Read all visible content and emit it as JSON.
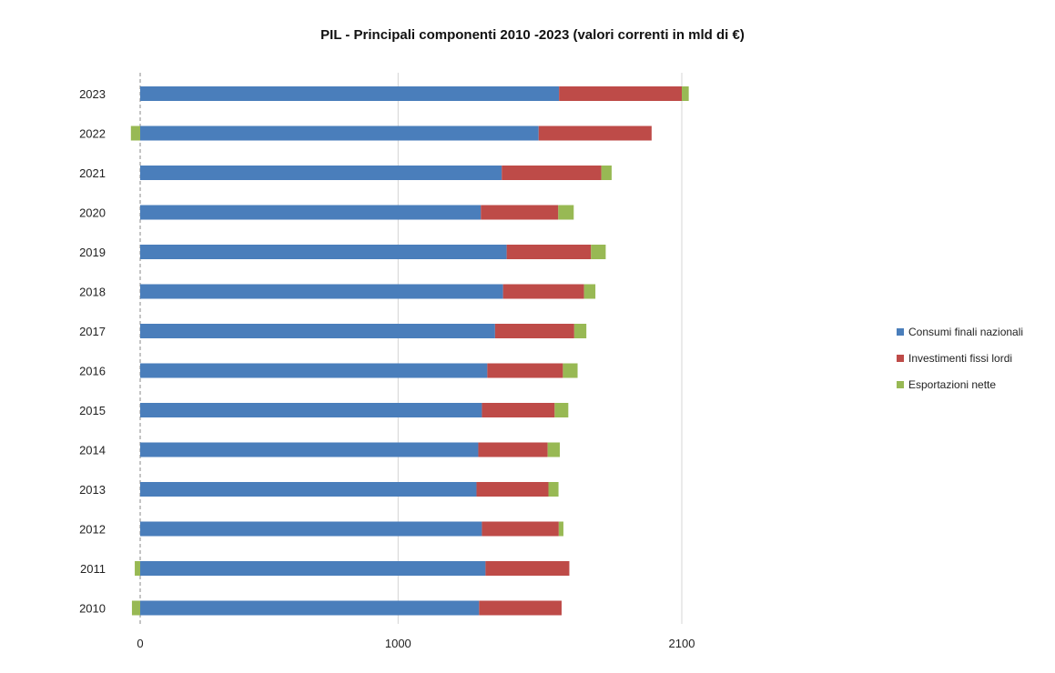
{
  "chart_data": {
    "type": "bar",
    "orientation": "horizontal",
    "stacked": true,
    "title": "PIL - Principali componenti 2010  -2023 (valori correnti in mld di €)",
    "categories": [
      "2023",
      "2022",
      "2021",
      "2020",
      "2019",
      "2018",
      "2017",
      "2016",
      "2015",
      "2014",
      "2013",
      "2012",
      "2011",
      "2010"
    ],
    "series": [
      {
        "name": "Consumi finali nazionali",
        "color": "#4a7ebb",
        "values": [
          1624,
          1545,
          1402,
          1321,
          1421,
          1407,
          1376,
          1346,
          1325,
          1311,
          1304,
          1325,
          1339,
          1314
        ]
      },
      {
        "name": "Investimenti fissi lordi",
        "color": "#be4b48",
        "values": [
          476,
          438,
          386,
          300,
          327,
          314,
          307,
          293,
          282,
          269,
          279,
          298,
          325,
          320
        ]
      },
      {
        "name": "Esportazioni nette",
        "color": "#98b954",
        "values": [
          27,
          -36,
          40,
          60,
          57,
          44,
          47,
          57,
          53,
          47,
          39,
          18,
          -21,
          -32
        ]
      }
    ],
    "xticks": [
      "0",
      "1000",
      "2100"
    ],
    "xlim": [
      0,
      2100
    ],
    "grid": true,
    "legend_position": "right"
  }
}
